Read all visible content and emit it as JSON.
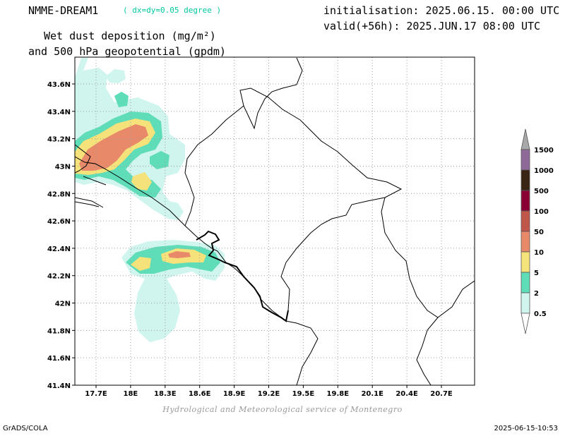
{
  "header": {
    "model": "NMME-DREAM1",
    "resolution": "( dx=dy=0.05 degree )",
    "init": "initialisation: 2025.06.15. 00:00 UTC",
    "valid": "valid(+56h): 2025.JUN.17 08:00 UTC",
    "title_line1": "Wet dust deposition (mg/m²)",
    "title_line2": "and 500 hPa geopotential (gpdm)"
  },
  "colors": {
    "accent_text": "#00c8a0",
    "c_0_5": "#cff5ee",
    "c_2": "#5fdcb8",
    "c_5": "#f5e27a",
    "c_10": "#e88a6a",
    "c_50": "#c0574a",
    "c_100": "#8a0034",
    "c_500": "#3a2414",
    "c_1000": "#8f6a98",
    "c_1500": "#a8a8a8"
  },
  "map": {
    "lat_labels": [
      "43.6N",
      "43.4N",
      "43.2N",
      "43N",
      "42.8N",
      "42.6N",
      "42.4N",
      "42.2N",
      "42N",
      "41.8N",
      "41.6N",
      "41.4N"
    ],
    "lon_labels": [
      "17.7E",
      "18E",
      "18.3E",
      "18.6E",
      "18.9E",
      "19.2E",
      "19.5E",
      "19.8E",
      "20.1E",
      "20.4E",
      "20.7E"
    ]
  },
  "legend": {
    "labels": [
      "1500",
      "1000",
      "500",
      "100",
      "50",
      "10",
      "5",
      "2",
      "0.5"
    ]
  },
  "footer": {
    "credit": "Hydrological and Meteorological service of Montenegro",
    "left": "GrADS/COLA",
    "right": "2025-06-15-10:53"
  }
}
